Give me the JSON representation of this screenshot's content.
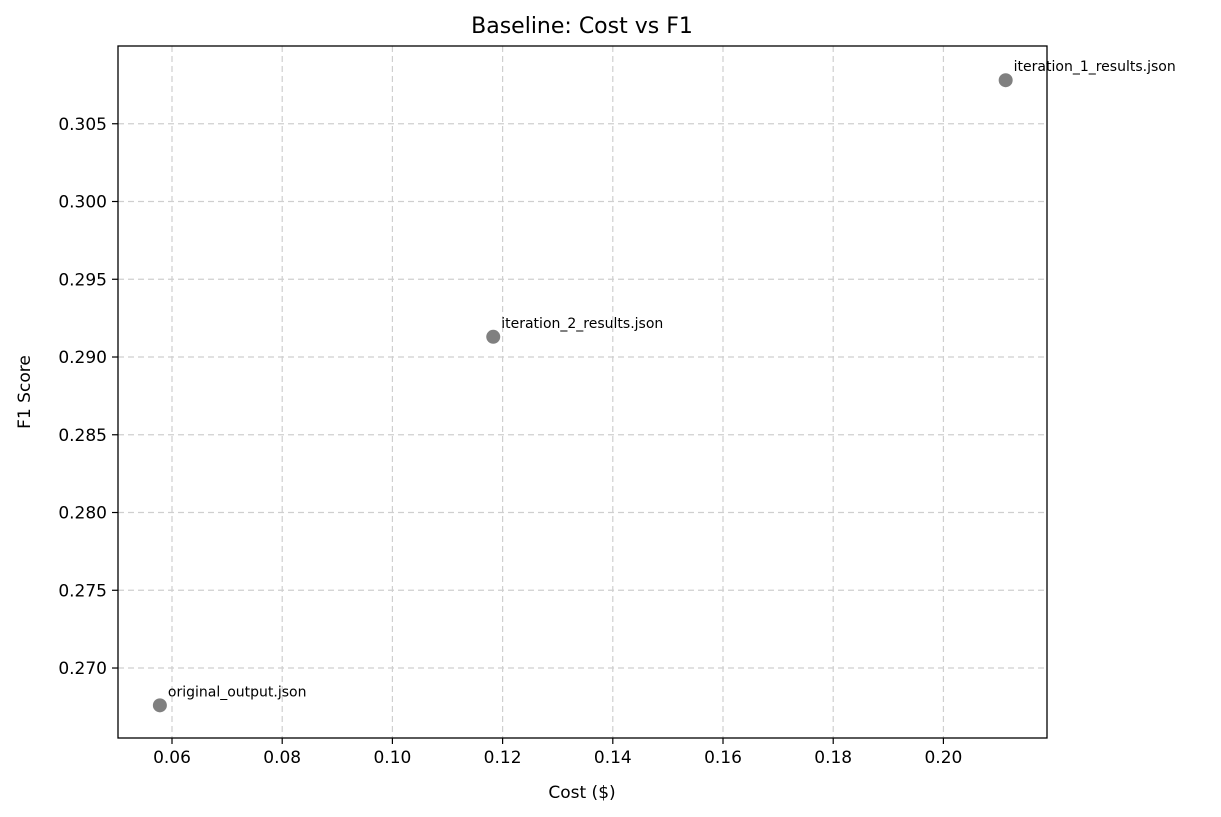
{
  "chart_data": {
    "type": "scatter",
    "title": "Baseline: Cost vs F1",
    "xlabel": "Cost ($)",
    "ylabel": "F1 Score",
    "xlim": [
      0.0502,
      0.2188
    ],
    "ylim": [
      0.2655,
      0.31
    ],
    "xticks": [
      0.06,
      0.08,
      0.1,
      0.12,
      0.14,
      0.16,
      0.18,
      0.2
    ],
    "xtick_labels": [
      "0.06",
      "0.08",
      "0.10",
      "0.12",
      "0.14",
      "0.16",
      "0.18",
      "0.20"
    ],
    "yticks": [
      0.27,
      0.275,
      0.28,
      0.285,
      0.29,
      0.295,
      0.3,
      0.305
    ],
    "ytick_labels": [
      "0.270",
      "0.275",
      "0.280",
      "0.285",
      "0.290",
      "0.295",
      "0.300",
      "0.305"
    ],
    "grid": true,
    "marker_color": "#808080",
    "points": [
      {
        "label": "original_output.json",
        "x": 0.0578,
        "y": 0.2676
      },
      {
        "label": "iteration_2_results.json",
        "x": 0.1183,
        "y": 0.2913
      },
      {
        "label": "iteration_1_results.json",
        "x": 0.2113,
        "y": 0.3078
      }
    ]
  }
}
